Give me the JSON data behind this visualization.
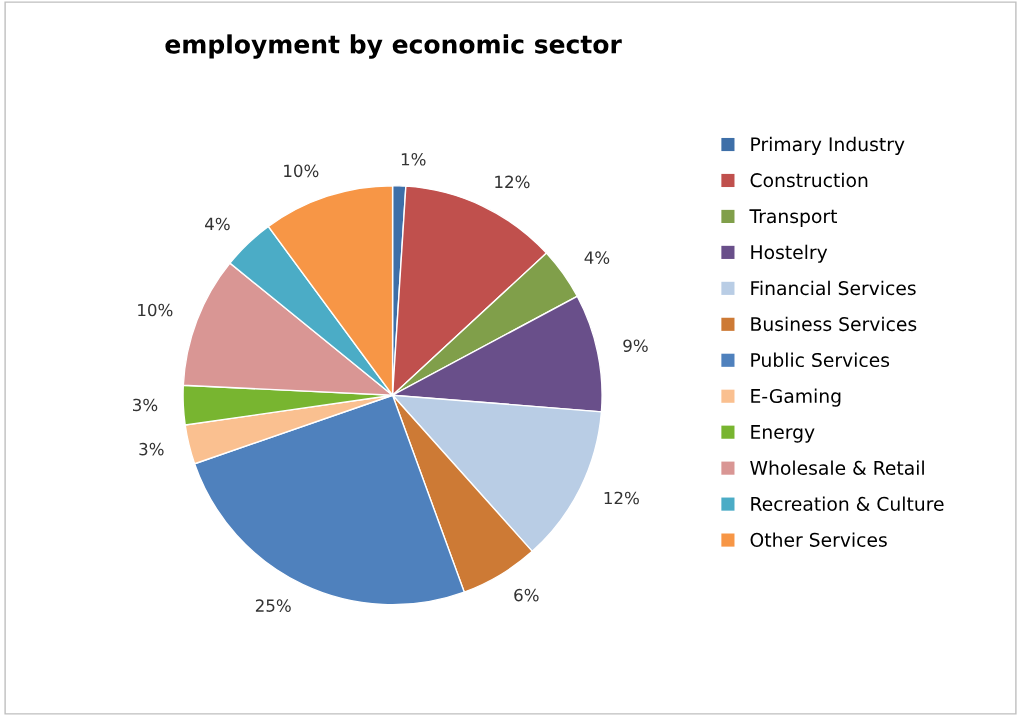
{
  "chart_data": {
    "type": "pie",
    "title": "employment by economic sector",
    "categories": [
      "Primary Industry",
      "Construction",
      "Transport",
      "Hostelry",
      "Financial Services",
      "Business Services",
      "Public Services",
      "E-Gaming",
      "Energy",
      "Wholesale & Retail",
      "Recreation & Culture",
      "Other Services"
    ],
    "values": [
      1,
      12,
      4,
      9,
      12,
      6,
      25,
      3,
      3,
      10,
      4,
      10
    ],
    "colors": [
      "#3e6fa8",
      "#c0504d",
      "#809f4a",
      "#694f8a",
      "#b9cde5",
      "#cd7a35",
      "#4f81bd",
      "#fac090",
      "#78b530",
      "#d99694",
      "#4bacc6",
      "#f79646"
    ],
    "value_labels": [
      "1%",
      "12%",
      "4%",
      "9%",
      "12%",
      "6%",
      "25%",
      "3%",
      "3%",
      "10%",
      "4%",
      "10%"
    ],
    "legend": "right"
  }
}
